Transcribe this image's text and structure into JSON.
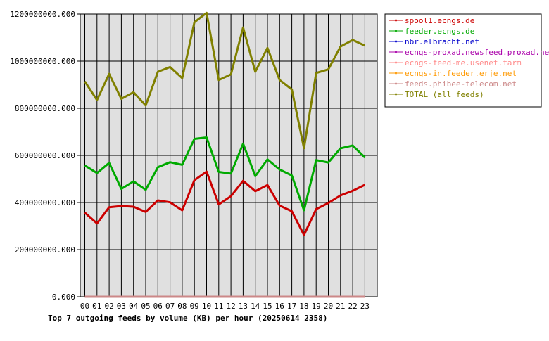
{
  "chart_data": {
    "type": "line",
    "title": "Top 7 outgoing feeds by volume (KB) per hour (20250614 2358)",
    "xlabel": "",
    "ylabel": "",
    "ylim": [
      0,
      1200000000
    ],
    "grid": true,
    "legend_position": "right",
    "categories": [
      "00",
      "01",
      "02",
      "03",
      "04",
      "05",
      "06",
      "07",
      "08",
      "09",
      "10",
      "11",
      "12",
      "13",
      "14",
      "15",
      "16",
      "17",
      "18",
      "19",
      "20",
      "21",
      "22",
      "23"
    ],
    "y_ticks": [
      {
        "value": 0,
        "label": "0.000"
      },
      {
        "value": 200000000,
        "label": "200000000.000"
      },
      {
        "value": 400000000,
        "label": "400000000.000"
      },
      {
        "value": 600000000,
        "label": "600000000.000"
      },
      {
        "value": 800000000,
        "label": "800000000.000"
      },
      {
        "value": 1000000000,
        "label": "1000000000.000"
      },
      {
        "value": 1200000000,
        "label": "1200000000.000"
      }
    ],
    "series": [
      {
        "name": "spool1.ecngs.de",
        "color": "#cc0000",
        "values": [
          357000000,
          311000000,
          380000000,
          385000000,
          382000000,
          360000000,
          409000000,
          401000000,
          367000000,
          495000000,
          531000000,
          392000000,
          427000000,
          492000000,
          448000000,
          474000000,
          387000000,
          363000000,
          262000000,
          372000000,
          398000000,
          430000000,
          450000000,
          475000000
        ]
      },
      {
        "name": "feeder.ecngs.de",
        "color": "#00aa00",
        "values": [
          557000000,
          525000000,
          568000000,
          458000000,
          490000000,
          454000000,
          550000000,
          571000000,
          560000000,
          670000000,
          676000000,
          530000000,
          523000000,
          650000000,
          512000000,
          583000000,
          540000000,
          515000000,
          367000000,
          580000000,
          570000000,
          630000000,
          642000000,
          591000000
        ]
      },
      {
        "name": "nbr.elbracht.net",
        "color": "#0000cc",
        "values": [
          0,
          0,
          0,
          0,
          0,
          0,
          0,
          0,
          0,
          0,
          0,
          0,
          0,
          0,
          0,
          0,
          0,
          0,
          0,
          0,
          0,
          0,
          0,
          0
        ]
      },
      {
        "name": "ecngs-proxad.newsfeed.proxad.net",
        "color": "#aa00aa",
        "values": [
          0,
          0,
          0,
          0,
          0,
          0,
          0,
          0,
          0,
          0,
          0,
          0,
          0,
          0,
          0,
          0,
          0,
          0,
          0,
          0,
          0,
          0,
          0,
          0
        ]
      },
      {
        "name": "ecngs-feed-me.usenet.farm",
        "color": "#ff8888",
        "values": [
          0,
          0,
          0,
          0,
          0,
          0,
          0,
          0,
          0,
          0,
          0,
          0,
          0,
          0,
          0,
          0,
          0,
          0,
          0,
          0,
          0,
          0,
          0,
          0
        ]
      },
      {
        "name": "ecngs-in.feeder.erje.net",
        "color": "#ff9900",
        "values": [
          0,
          0,
          0,
          0,
          0,
          0,
          0,
          0,
          0,
          0,
          0,
          0,
          0,
          0,
          0,
          0,
          0,
          0,
          0,
          0,
          0,
          0,
          0,
          0
        ]
      },
      {
        "name": "feeds.phibee-telecom.net",
        "color": "#cc8888",
        "values": [
          0,
          0,
          0,
          0,
          0,
          0,
          0,
          0,
          0,
          0,
          0,
          0,
          0,
          0,
          0,
          0,
          0,
          0,
          0,
          0,
          0,
          0,
          0,
          0
        ]
      },
      {
        "name": "TOTAL (all feeds)",
        "color": "#808000",
        "values": [
          914000000,
          835000000,
          946000000,
          840000000,
          868000000,
          812000000,
          955000000,
          975000000,
          928000000,
          1165000000,
          1205000000,
          920000000,
          944000000,
          1143000000,
          955000000,
          1056000000,
          920000000,
          880000000,
          630000000,
          950000000,
          965000000,
          1062000000,
          1090000000,
          1066000000
        ]
      }
    ]
  }
}
